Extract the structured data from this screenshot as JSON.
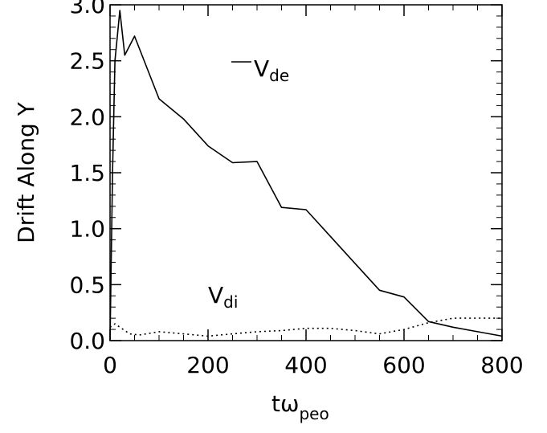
{
  "chart_data": {
    "type": "line",
    "title": "",
    "xlabel": "tω",
    "xlabel_sub": "peo",
    "ylabel": "Drift Along Y",
    "xlim": [
      0,
      800
    ],
    "ylim": [
      0,
      3.0
    ],
    "x_ticks": [
      0,
      200,
      400,
      600,
      800
    ],
    "x_tick_labels": [
      "0",
      "200",
      "400",
      "600",
      "800"
    ],
    "y_ticks": [
      0.0,
      0.5,
      1.0,
      1.5,
      2.0,
      2.5,
      3.0
    ],
    "y_tick_labels": [
      "0.0",
      "0.5",
      "1.0",
      "1.5",
      "2.0",
      "2.5",
      "3.0"
    ],
    "grid": false,
    "series": [
      {
        "name": "V",
        "name_sub": "de",
        "style": "solid",
        "color": "#000000",
        "x": [
          0,
          5,
          10,
          20,
          30,
          50,
          100,
          150,
          200,
          250,
          300,
          350,
          400,
          450,
          500,
          550,
          600,
          650,
          700,
          750,
          800
        ],
        "y": [
          0.0,
          1.5,
          2.5,
          2.95,
          2.55,
          2.72,
          2.16,
          1.98,
          1.74,
          1.59,
          1.6,
          1.19,
          1.17,
          0.93,
          0.69,
          0.45,
          0.39,
          0.17,
          0.12,
          0.08,
          0.04
        ]
      },
      {
        "name": "V",
        "name_sub": "di",
        "style": "dotted",
        "color": "#000000",
        "x": [
          0,
          10,
          20,
          40,
          60,
          100,
          150,
          200,
          250,
          300,
          350,
          400,
          450,
          500,
          550,
          600,
          650,
          700,
          750,
          800
        ],
        "y": [
          0.12,
          0.15,
          0.12,
          0.06,
          0.05,
          0.08,
          0.06,
          0.04,
          0.06,
          0.08,
          0.09,
          0.11,
          0.11,
          0.09,
          0.06,
          0.1,
          0.16,
          0.2,
          0.2,
          0.2
        ]
      }
    ]
  }
}
